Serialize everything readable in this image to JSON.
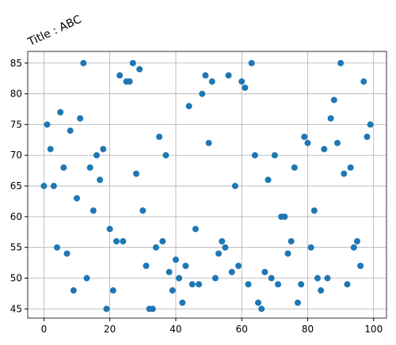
{
  "chart_data": {
    "type": "scatter",
    "title": "Title : ABC",
    "x": [
      0,
      1,
      2,
      3,
      4,
      5,
      6,
      7,
      8,
      9,
      10,
      11,
      12,
      13,
      14,
      15,
      16,
      17,
      18,
      19,
      20,
      21,
      22,
      23,
      24,
      25,
      26,
      27,
      28,
      29,
      30,
      31,
      32,
      33,
      34,
      35,
      36,
      37,
      38,
      39,
      40,
      41,
      42,
      43,
      44,
      45,
      46,
      47,
      48,
      49,
      50,
      51,
      52,
      53,
      54,
      55,
      56,
      57,
      58,
      59,
      60,
      61,
      62,
      63,
      64,
      65,
      66,
      67,
      68,
      69,
      70,
      71,
      72,
      73,
      74,
      75,
      76,
      77,
      78,
      79,
      80,
      81,
      82,
      83,
      84,
      85,
      86,
      87,
      88,
      89,
      90,
      91,
      92,
      93,
      94,
      95,
      96,
      97,
      98,
      99
    ],
    "values": [
      65,
      75,
      71,
      65,
      55,
      77,
      68,
      54,
      74,
      48,
      63,
      76,
      85,
      50,
      68,
      61,
      70,
      66,
      71,
      45,
      58,
      48,
      56,
      83,
      56,
      82,
      82,
      85,
      67,
      84,
      61,
      52,
      45,
      45,
      55,
      73,
      56,
      70,
      51,
      48,
      53,
      50,
      46,
      52,
      78,
      49,
      58,
      49,
      80,
      83,
      72,
      82,
      50,
      54,
      56,
      55,
      83,
      51,
      65,
      52,
      82,
      81,
      49,
      85,
      70,
      46,
      45,
      51,
      66,
      50,
      70,
      49,
      60,
      60,
      54,
      56,
      68,
      46,
      49,
      73,
      72,
      55,
      61,
      50,
      48,
      71,
      50,
      76,
      79,
      72,
      85,
      67,
      49,
      68,
      55,
      56,
      52,
      82,
      73,
      75
    ],
    "color": "#1f77b4",
    "xlim": [
      -4.9,
      103.9
    ],
    "xticks": [
      0,
      20,
      40,
      60,
      80,
      100
    ],
    "ylim": [
      43.5,
      86.9
    ],
    "yticks": [
      45,
      50,
      55,
      60,
      65,
      70,
      75,
      80,
      85
    ],
    "grid": true
  }
}
